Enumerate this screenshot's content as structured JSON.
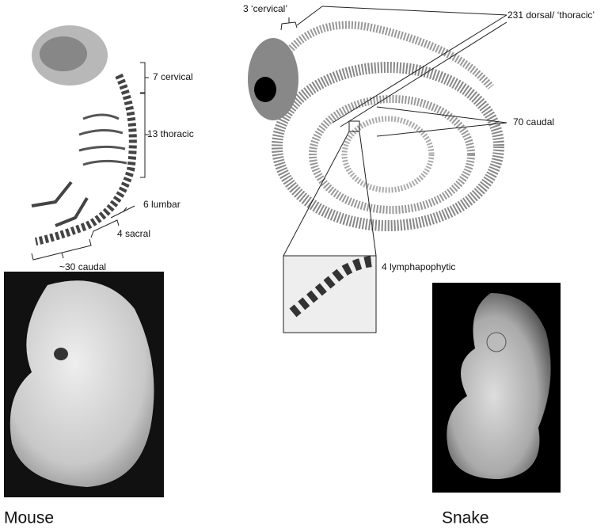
{
  "mouse": {
    "labels": [
      "7 cervical",
      "13 thoracic",
      "6 lumbar",
      "4 sacral",
      "~30 caudal"
    ],
    "caption": "Mouse"
  },
  "snake": {
    "labels": [
      "3 ‘cervical’",
      "231 dorsal/ ‘thoracic’",
      "70 caudal",
      "4 lymphapophytic"
    ],
    "caption": "Snake"
  }
}
